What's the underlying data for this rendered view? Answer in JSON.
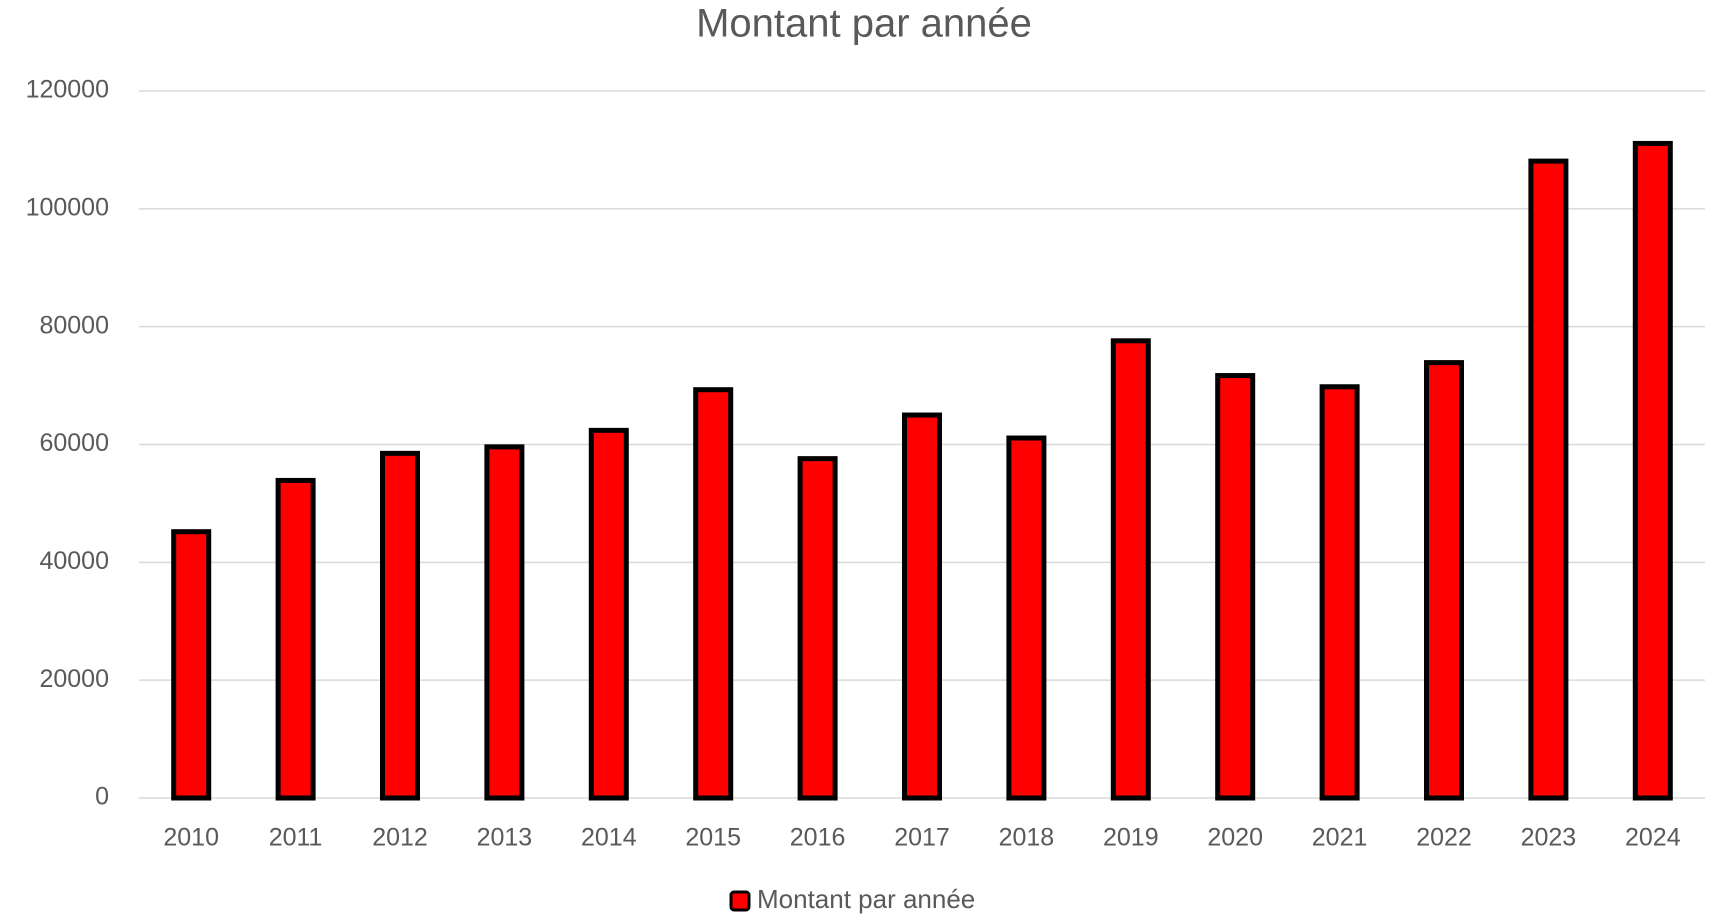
{
  "chart_data": {
    "type": "bar",
    "title": "Montant par année",
    "categories": [
      "2010",
      "2011",
      "2012",
      "2013",
      "2014",
      "2015",
      "2016",
      "2017",
      "2018",
      "2019",
      "2020",
      "2021",
      "2022",
      "2023",
      "2024"
    ],
    "series": [
      {
        "name": "Montant par année",
        "color": "#ff0000",
        "edge_color": "#000000",
        "values": [
          45200,
          53900,
          58500,
          59600,
          62400,
          69300,
          57600,
          65000,
          61100,
          77600,
          71700,
          69800,
          73900,
          108100,
          111100
        ]
      }
    ],
    "ylim": [
      0,
      120000
    ],
    "yticks": [
      0,
      20000,
      40000,
      60000,
      80000,
      100000,
      120000
    ],
    "grid": true,
    "legend": "bottom"
  }
}
